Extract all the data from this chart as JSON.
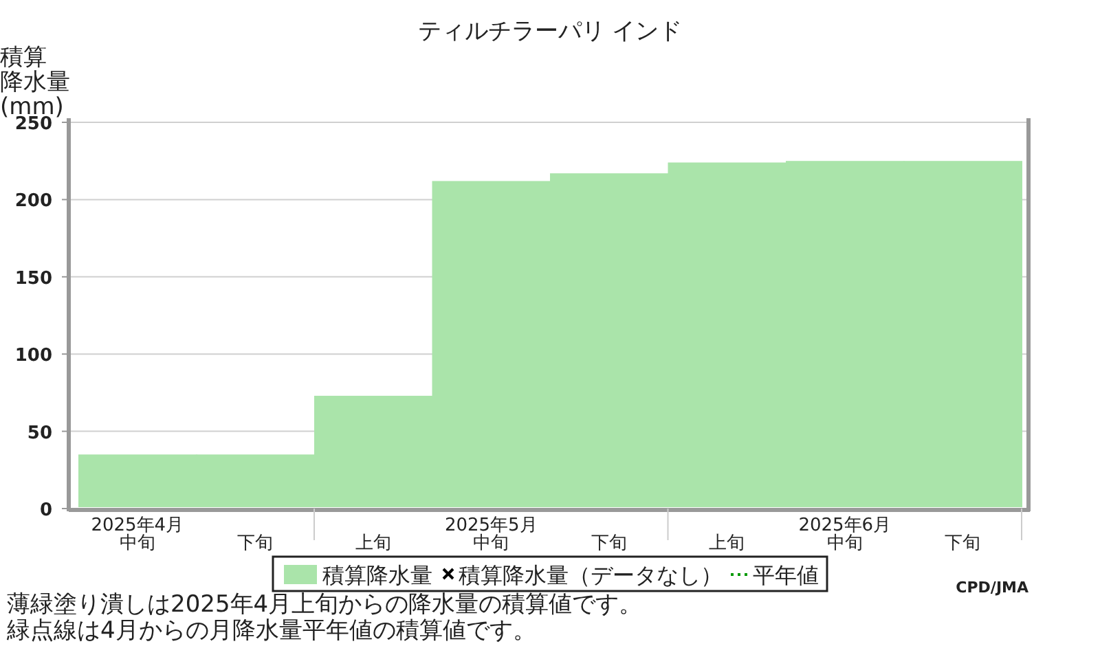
{
  "chart_data": {
    "type": "bar",
    "title": "ティルチラーパリ インド",
    "ylabel": "積算降水量(mm)",
    "categories": [
      "2025年4月中旬",
      "下旬",
      "上旬",
      "2025年5月中旬",
      "下旬",
      "上旬",
      "2025年6月中旬",
      "下旬"
    ],
    "series": [
      {
        "name": "積算降水量",
        "color": "#aae4aa",
        "values": [
          35,
          35,
          73,
          212,
          217,
          224,
          225,
          225
        ]
      },
      {
        "name": "積算降水量（データなし）",
        "type": "scatter",
        "marker": "cross",
        "color": "#000000",
        "values": [
          null,
          null,
          null,
          null,
          null,
          null,
          null,
          null
        ]
      },
      {
        "name": "平年値",
        "type": "line",
        "line_style": "dotted",
        "color": "#009900",
        "values": [
          null,
          null,
          null,
          null,
          null,
          null,
          null,
          null
        ]
      }
    ],
    "ylim": [
      0,
      250
    ],
    "yticks": [
      0,
      50,
      100,
      150,
      200,
      250
    ],
    "grid": "y",
    "legend": "bottom",
    "annotations": [
      "CPD/JMA",
      "薄緑塗り潰しは2025年4月上旬からの降水量の積算値です。",
      "緑点線は4月からの月降水量平年値の積算値です。"
    ]
  }
}
